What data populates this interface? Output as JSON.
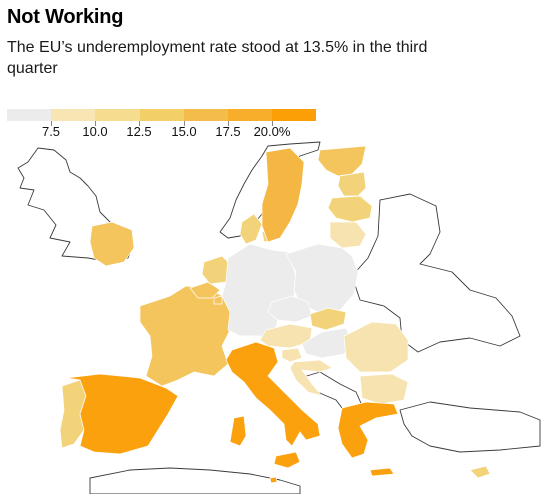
{
  "title": "Not Working",
  "subtitle": "The EU’s underemployment rate stood at 13.5% in the third quarter",
  "legend": {
    "colors": [
      "#ececec",
      "#f7e6b4",
      "#f5dc8e",
      "#f3cf68",
      "#f4bc4a",
      "#f8ad2b",
      "#fb9f06"
    ],
    "labels": [
      "7.5",
      "10.0",
      "12.5",
      "15.0",
      "17.5",
      "20.0%"
    ]
  },
  "map": {
    "colors": {
      "low": "#ececec",
      "light": "#f6e3b0",
      "mid": "#f3d37a",
      "midhigh": "#f3c55c",
      "high": "#f5b744",
      "vhigh": "#fba10e"
    },
    "countries": [
      {
        "name": "Ireland",
        "shade": "midhigh"
      },
      {
        "name": "Portugal",
        "shade": "mid"
      },
      {
        "name": "Spain",
        "shade": "vhigh"
      },
      {
        "name": "France",
        "shade": "midhigh"
      },
      {
        "name": "Belgium",
        "shade": "midhigh"
      },
      {
        "name": "Netherlands",
        "shade": "mid"
      },
      {
        "name": "Luxembourg",
        "shade": "midhigh"
      },
      {
        "name": "Germany",
        "shade": "low"
      },
      {
        "name": "Denmark",
        "shade": "mid"
      },
      {
        "name": "Sweden",
        "shade": "high"
      },
      {
        "name": "Finland",
        "shade": "midhigh"
      },
      {
        "name": "Estonia",
        "shade": "mid"
      },
      {
        "name": "Latvia",
        "shade": "mid"
      },
      {
        "name": "Lithuania",
        "shade": "light"
      },
      {
        "name": "Poland",
        "shade": "low"
      },
      {
        "name": "Czechia",
        "shade": "low"
      },
      {
        "name": "Slovakia",
        "shade": "mid"
      },
      {
        "name": "Austria",
        "shade": "light"
      },
      {
        "name": "Hungary",
        "shade": "low"
      },
      {
        "name": "Slovenia",
        "shade": "light"
      },
      {
        "name": "Croatia",
        "shade": "light"
      },
      {
        "name": "Romania",
        "shade": "light"
      },
      {
        "name": "Bulgaria",
        "shade": "light"
      },
      {
        "name": "Italy",
        "shade": "vhigh"
      },
      {
        "name": "Greece",
        "shade": "vhigh"
      },
      {
        "name": "Cyprus",
        "shade": "mid"
      },
      {
        "name": "Malta",
        "shade": "vhigh"
      }
    ]
  }
}
